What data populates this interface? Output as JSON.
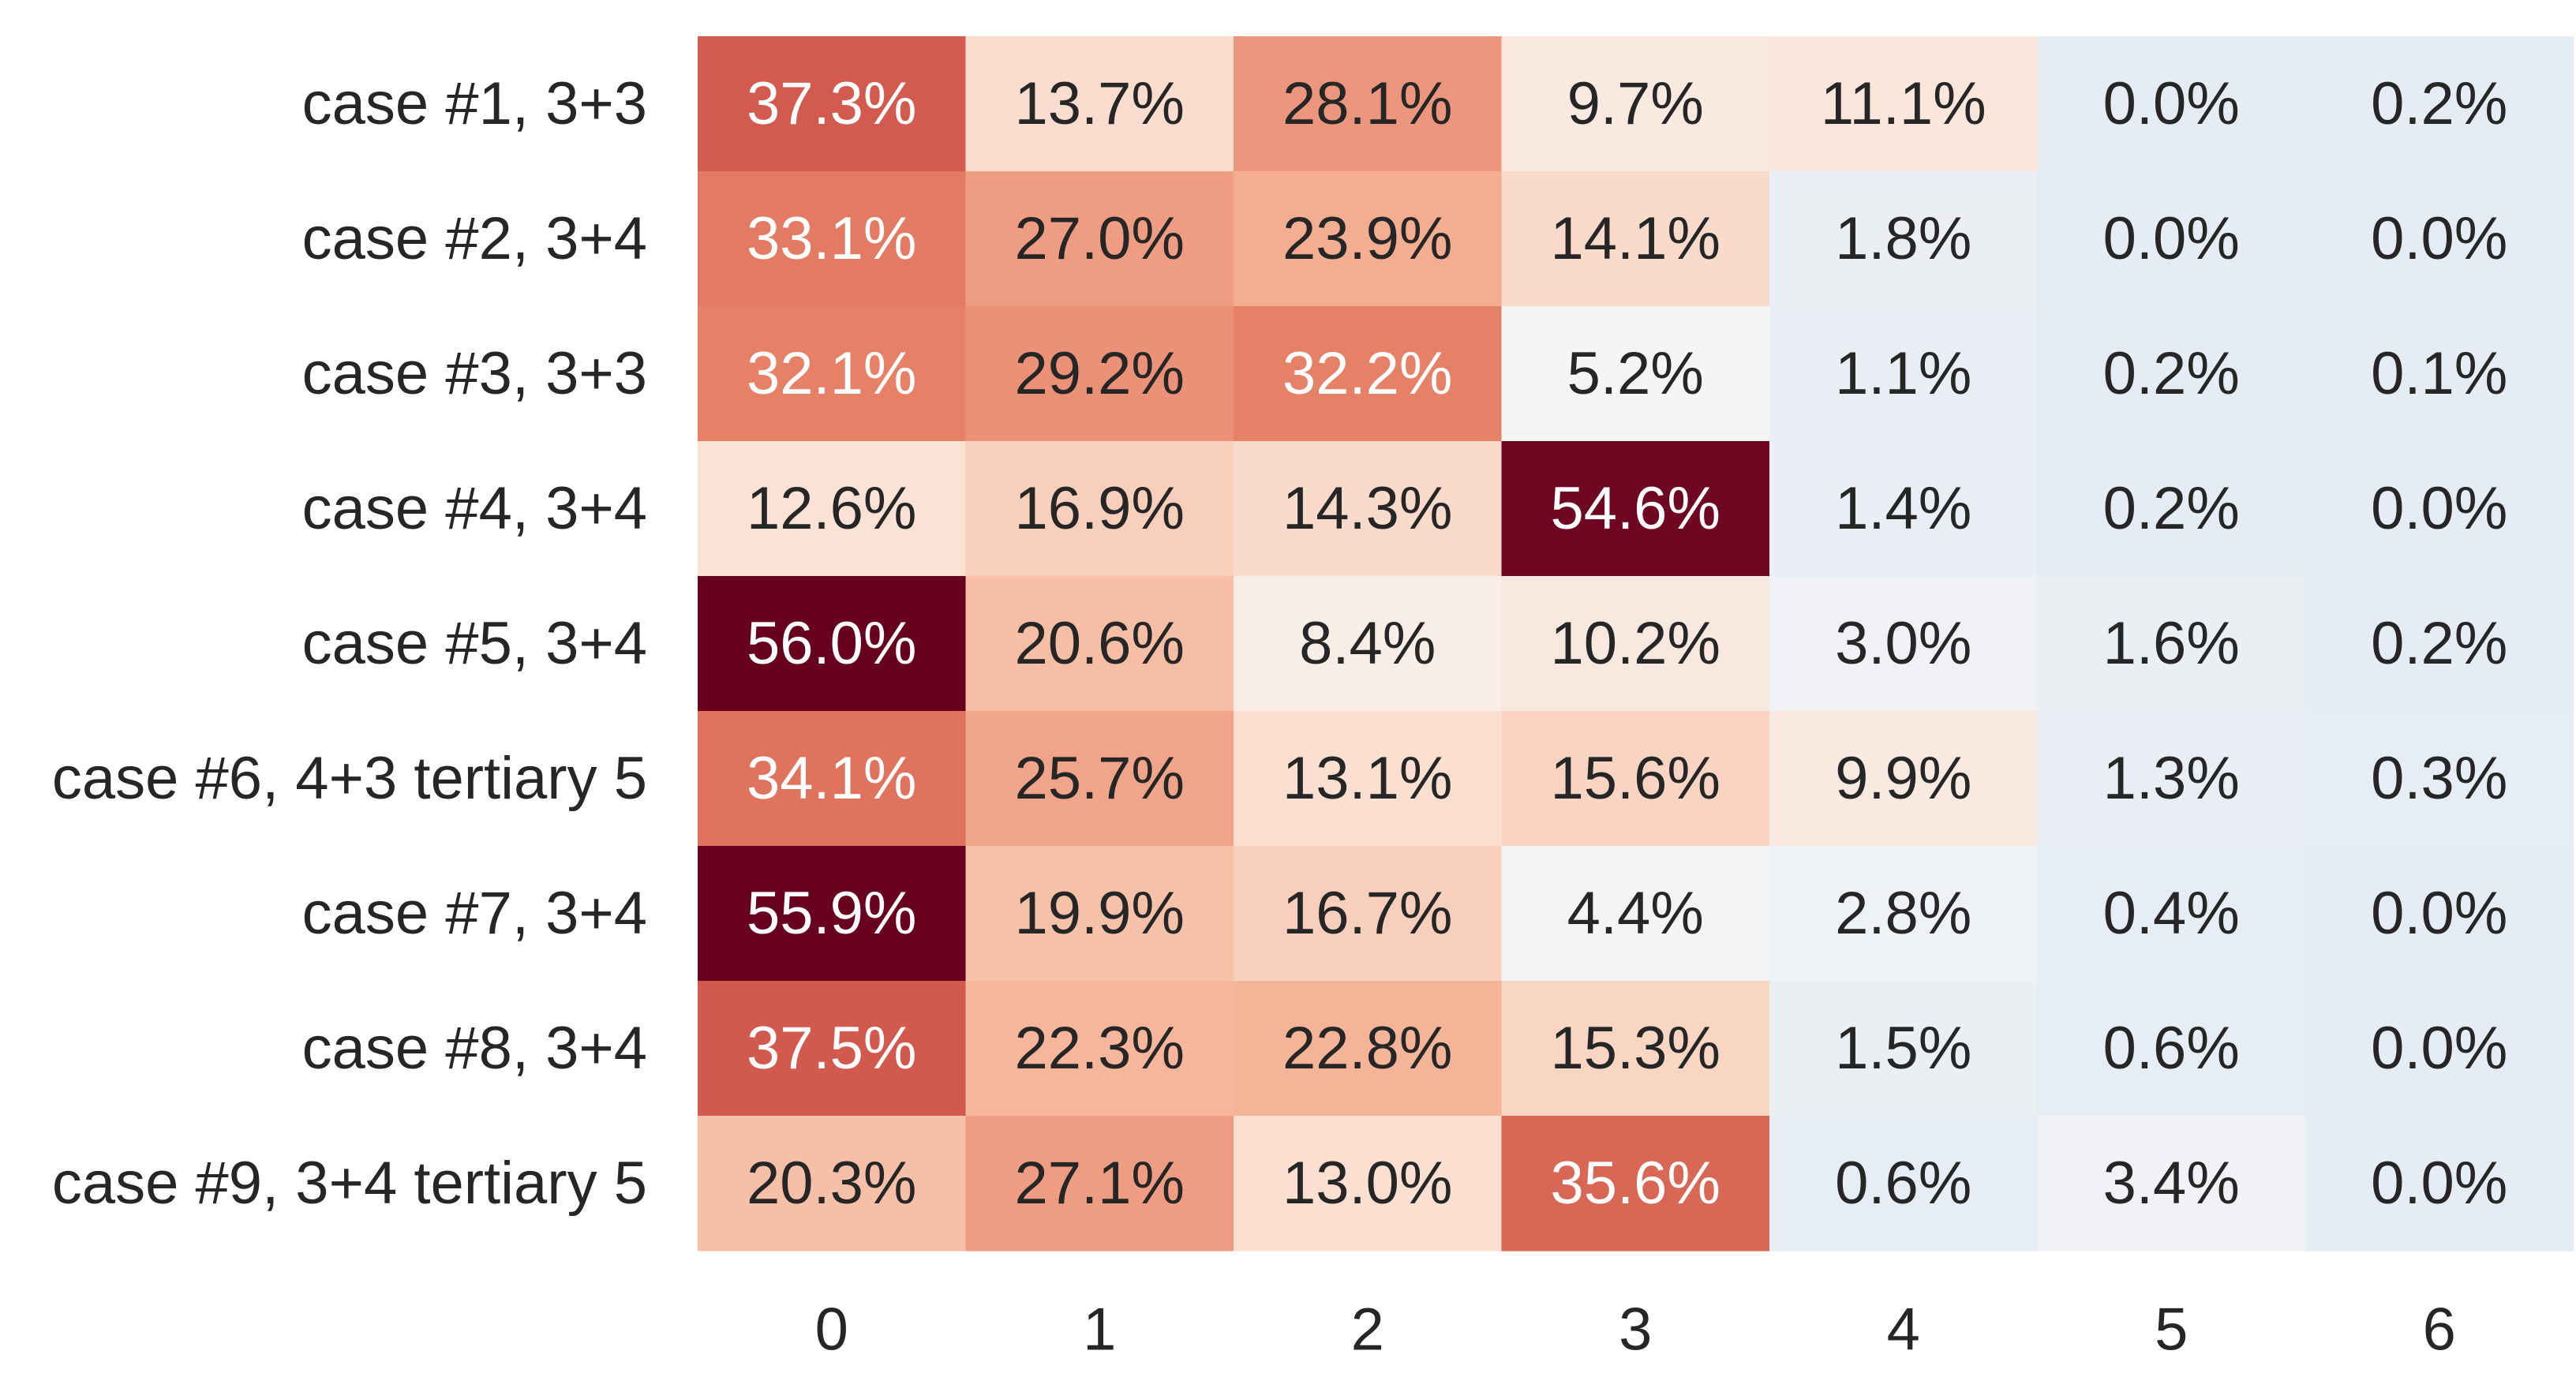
{
  "chart_data": {
    "type": "heatmap",
    "title": "",
    "xlabel": "",
    "ylabel": "",
    "x_categories": [
      "0",
      "1",
      "2",
      "3",
      "4",
      "5",
      "6"
    ],
    "y_categories": [
      "case #1, 3+3",
      "case #2, 3+4",
      "case #3, 3+3",
      "case #4, 3+4",
      "case #5, 3+4",
      "case #6, 4+3 tertiary 5",
      "case #7, 3+4",
      "case #8, 3+4",
      "case #9, 3+4 tertiary 5"
    ],
    "values": [
      [
        37.3,
        13.7,
        28.1,
        9.7,
        11.1,
        0.0,
        0.2
      ],
      [
        33.1,
        27.0,
        23.9,
        14.1,
        1.8,
        0.0,
        0.0
      ],
      [
        32.1,
        29.2,
        32.2,
        5.2,
        1.1,
        0.2,
        0.1
      ],
      [
        12.6,
        16.9,
        14.3,
        54.6,
        1.4,
        0.2,
        0.0
      ],
      [
        56.0,
        20.6,
        8.4,
        10.2,
        3.0,
        1.6,
        0.2
      ],
      [
        34.1,
        25.7,
        13.1,
        15.6,
        9.9,
        1.3,
        0.3
      ],
      [
        55.9,
        19.9,
        16.7,
        4.4,
        2.8,
        0.4,
        0.0
      ],
      [
        37.5,
        22.3,
        22.8,
        15.3,
        1.5,
        0.6,
        0.0
      ],
      [
        20.3,
        27.1,
        13.0,
        35.6,
        0.6,
        3.4,
        0.0
      ]
    ],
    "value_format": "%",
    "colormap": "diverging blue-white-red (RdBu_r)",
    "color_stops": [
      "#e5ecf4",
      "#f5f5f5",
      "#fbe3d6",
      "#f5b69a",
      "#e57f66",
      "#cc4c44",
      "#67001f"
    ],
    "colorbar": false,
    "grid": false
  }
}
